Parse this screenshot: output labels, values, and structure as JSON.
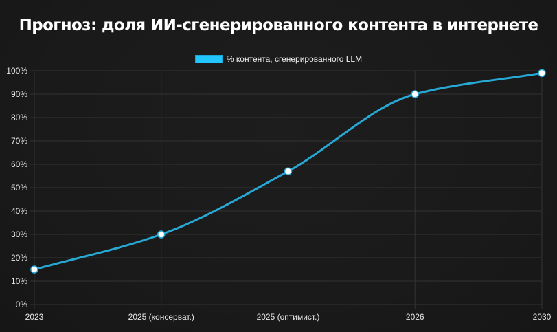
{
  "title": "Прогноз: доля ИИ-сгенерированного контента в интернете",
  "legend": {
    "label": "% контента, сгенерированного LLM",
    "color": "#22c6ff"
  },
  "colors": {
    "line": "#27a9d6",
    "point_fill": "#ffffff",
    "grid": "#333333",
    "background": "#1b1b1b"
  },
  "chart_data": {
    "type": "line",
    "title": "Прогноз: доля ИИ-сгенерированного контента в интернете",
    "categories": [
      "2023",
      "2025 (консерват.)",
      "2025 (оптимист.)",
      "2026",
      "2030"
    ],
    "series": [
      {
        "name": "% контента, сгенерированного LLM",
        "values": [
          15,
          30,
          57,
          90,
          99
        ]
      }
    ],
    "xlabel": "",
    "ylabel": "",
    "ylim": [
      0,
      100
    ],
    "yticks": [
      "0%",
      "10%",
      "20%",
      "30%",
      "40%",
      "50%",
      "60%",
      "70%",
      "80%",
      "90%",
      "100%"
    ],
    "grid": true,
    "legend_position": "top"
  }
}
